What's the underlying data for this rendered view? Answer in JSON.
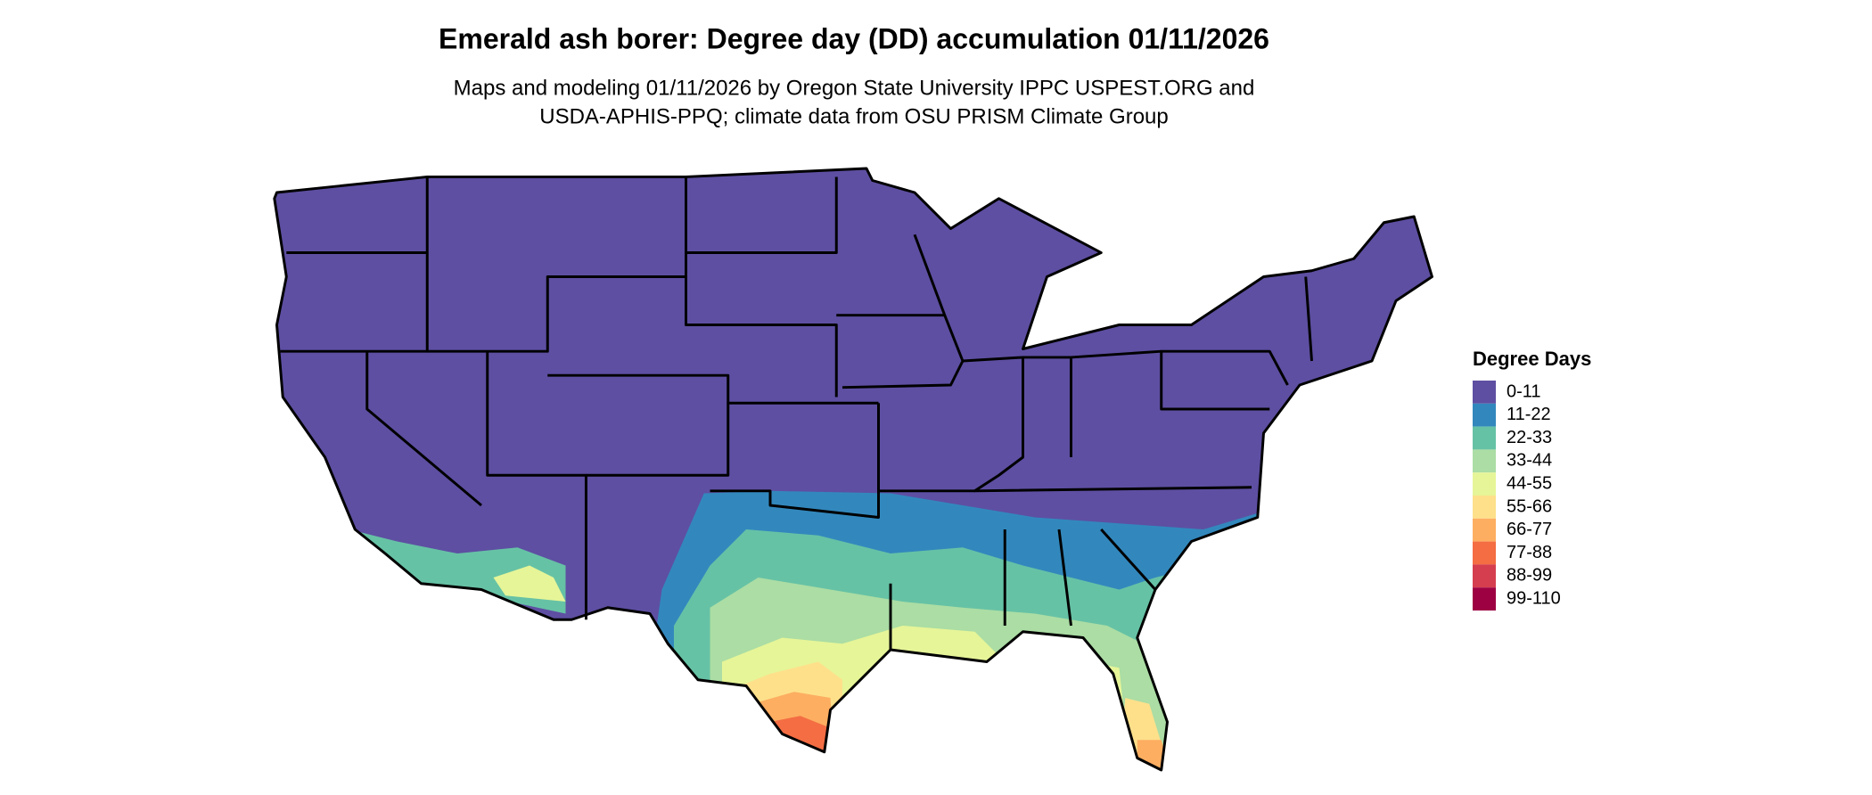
{
  "title": "Emerald ash borer: Degree day (DD) accumulation 01/11/2026",
  "subtitle": [
    "Maps and modeling 01/11/2026 by Oregon State University IPPC USPEST.ORG and",
    "USDA-APHIS-PPQ; climate data from OSU PRISM Climate Group"
  ],
  "legend": {
    "title": "Degree Days",
    "items": [
      {
        "label": "0-11",
        "color": "#5e4fa2"
      },
      {
        "label": "11-22",
        "color": "#3288bd"
      },
      {
        "label": "22-33",
        "color": "#66c2a5"
      },
      {
        "label": "33-44",
        "color": "#abdda4"
      },
      {
        "label": "44-55",
        "color": "#e6f598"
      },
      {
        "label": "55-66",
        "color": "#fee08b"
      },
      {
        "label": "66-77",
        "color": "#fdae61"
      },
      {
        "label": "77-88",
        "color": "#f46d43"
      },
      {
        "label": "88-99",
        "color": "#d53e4f"
      },
      {
        "label": "99-110",
        "color": "#9e0142"
      }
    ]
  }
}
